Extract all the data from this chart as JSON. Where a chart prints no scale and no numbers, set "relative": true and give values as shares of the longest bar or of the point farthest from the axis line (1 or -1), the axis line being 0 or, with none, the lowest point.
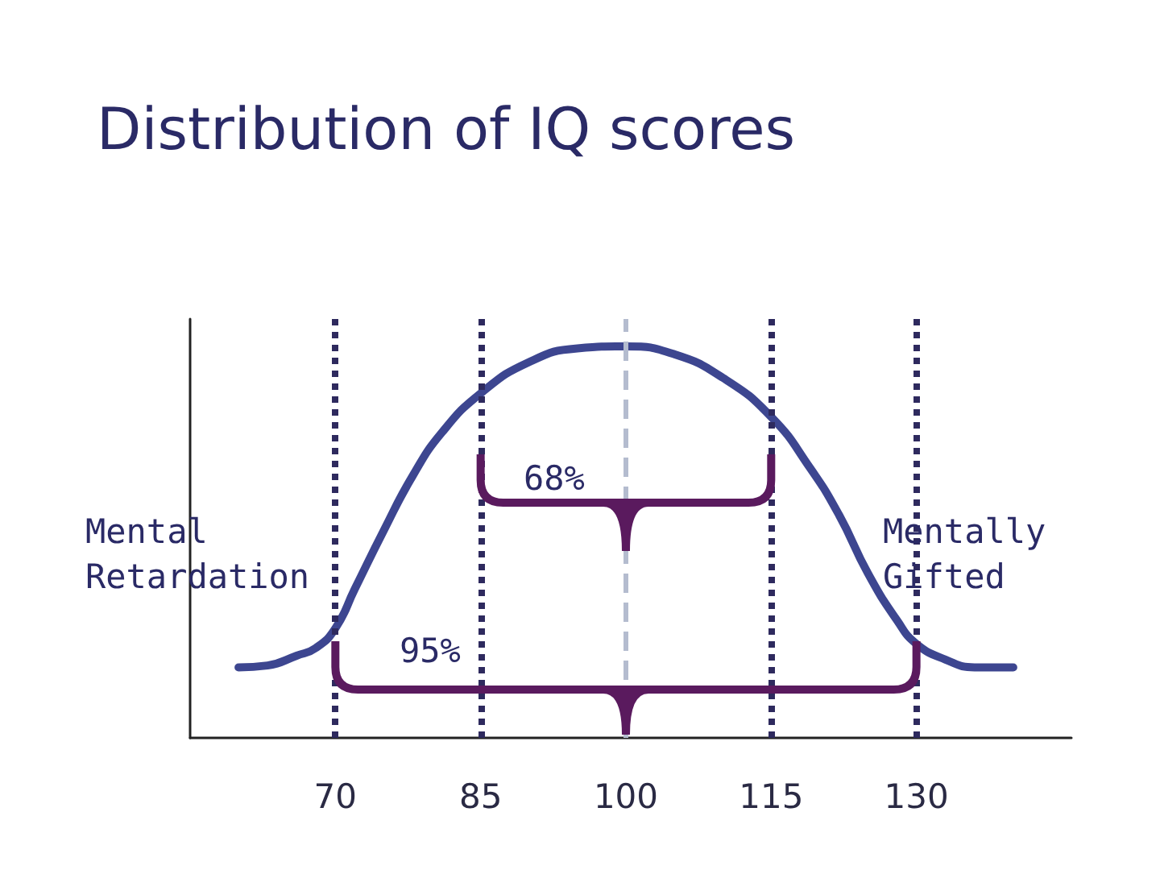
{
  "chart_data": {
    "type": "line",
    "title": "Distribution of IQ scores",
    "relative": true,
    "color": "#3d4690",
    "x": [
      60,
      63,
      66,
      68,
      70,
      72,
      75,
      78,
      81,
      85,
      90,
      95,
      100,
      105,
      110,
      115,
      119,
      122,
      125,
      128,
      130,
      133,
      136,
      140
    ],
    "values": [
      0.18,
      0.185,
      0.21,
      0.23,
      0.28,
      0.38,
      0.53,
      0.67,
      0.78,
      0.88,
      0.96,
      0.995,
      1,
      0.98,
      0.92,
      0.82,
      0.69,
      0.57,
      0.42,
      0.3,
      0.24,
      0.2,
      0.18,
      0.18
    ],
    "xlim": [
      55,
      146
    ],
    "xticks": [
      70,
      85,
      100,
      115,
      130
    ],
    "grid": false,
    "marker": "none",
    "line_style": "solid",
    "ref_lines": [
      {
        "axis": "x",
        "value": 70,
        "color": "#2e2a5e",
        "line_style": "dotted"
      },
      {
        "axis": "x",
        "value": 85,
        "color": "#2e2a5e",
        "line_style": "dotted"
      },
      {
        "axis": "x",
        "value": 100,
        "color": "#b4bccf",
        "line_style": "dashed"
      },
      {
        "axis": "x",
        "value": 115,
        "color": "#2e2a5e",
        "line_style": "dotted"
      },
      {
        "axis": "x",
        "value": 130,
        "color": "#2e2a5e",
        "line_style": "dotted"
      }
    ],
    "annotations": [
      "68%",
      "95%",
      "Mental Retardation",
      "Mentally Gifted"
    ]
  }
}
